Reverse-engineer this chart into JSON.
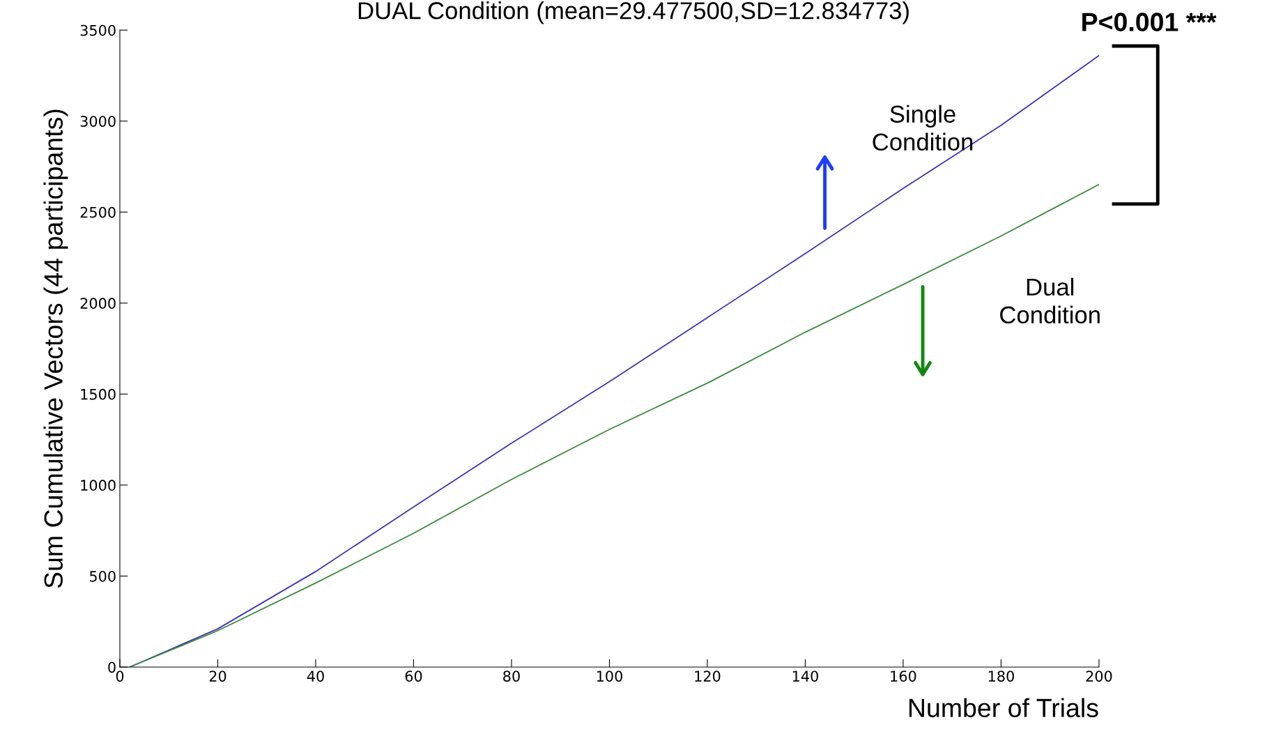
{
  "chart_data": {
    "type": "line",
    "title": "DUAL Condition (mean=29.477500,SD=12.834773)",
    "xlabel": "Number of Trials",
    "ylabel": "Sum Cumulative Vectors (44 participants)",
    "xlim": [
      0,
      200
    ],
    "xticks": [
      0,
      20,
      40,
      60,
      80,
      100,
      120,
      140,
      160,
      180,
      200
    ],
    "ylim": [
      0,
      3500
    ],
    "yticks": [
      0,
      500,
      1000,
      1500,
      2000,
      2500,
      3000,
      3500
    ],
    "grid": false,
    "legend": false,
    "marker": "none",
    "line_style": "solid",
    "series": [
      {
        "name": "Single\nCondition",
        "color": "#3c34b4",
        "x": [
          2,
          20,
          40,
          60,
          80,
          100,
          120,
          140,
          160,
          180,
          200
        ],
        "values": [
          0,
          210,
          525,
          880,
          1230,
          1568,
          1920,
          2272,
          2630,
          2977,
          3360
        ]
      },
      {
        "name": "Dual\nCondition",
        "color": "#3a8a3a",
        "x": [
          2,
          20,
          40,
          60,
          80,
          100,
          120,
          140,
          160,
          180,
          200
        ],
        "values": [
          0,
          200,
          462,
          735,
          1031,
          1306,
          1560,
          1840,
          2102,
          2369,
          2652
        ]
      }
    ],
    "annotations": [
      "P<0.001 ***"
    ]
  }
}
